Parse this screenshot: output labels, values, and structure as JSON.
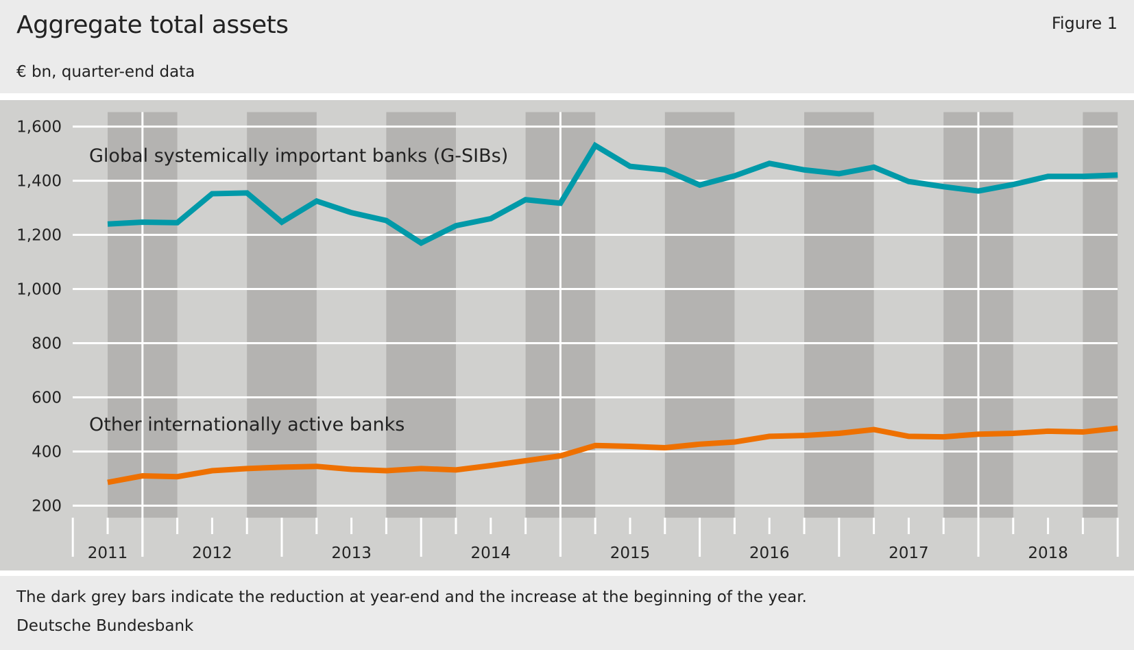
{
  "header": {
    "title": "Aggregate total assets",
    "figure": "Figure 1",
    "subtitle": "€ bn, quarter-end data"
  },
  "footer": {
    "note": "The dark grey bars indicate the reduction at year-end and the increase at the beginning of the year.",
    "source": "Deutsche Bundesbank"
  },
  "chart_data": {
    "type": "line",
    "title": "Aggregate total assets",
    "ylabel": "€ bn",
    "ylim": [
      200,
      1600
    ],
    "yticks": [
      "200",
      "400",
      "600",
      "800",
      "1,000",
      "1,200",
      "1,400",
      "1,600"
    ],
    "ytick_values": [
      200,
      400,
      600,
      800,
      1000,
      1200,
      1400,
      1600
    ],
    "year_labels": [
      "2011",
      "2012",
      "2013",
      "2014",
      "2015",
      "2016",
      "2017",
      "2018"
    ],
    "x": [
      "2011 Q3",
      "2011 Q4",
      "2012 Q1",
      "2012 Q2",
      "2012 Q3",
      "2012 Q4",
      "2013 Q1",
      "2013 Q2",
      "2013 Q3",
      "2013 Q4",
      "2014 Q1",
      "2014 Q2",
      "2014 Q3",
      "2014 Q4",
      "2015 Q1",
      "2015 Q2",
      "2015 Q3",
      "2015 Q4",
      "2016 Q1",
      "2016 Q2",
      "2016 Q3",
      "2016 Q4",
      "2017 Q1",
      "2017 Q2",
      "2017 Q3",
      "2017 Q4",
      "2018 Q1",
      "2018 Q2",
      "2018 Q3",
      "2018 Q4"
    ],
    "grid": true,
    "shading": "dark grey bars around each year-end (Q3 to Q1)",
    "series": [
      {
        "name": "Global systemically important banks (G-SIBs)",
        "color": "#0099a8",
        "values": [
          1240,
          1247,
          1245,
          1352,
          1355,
          1247,
          1325,
          1282,
          1253,
          1170,
          1234,
          1260,
          1330,
          1317,
          1530,
          1453,
          1440,
          1384,
          1418,
          1464,
          1440,
          1426,
          1450,
          1397,
          1378,
          1362,
          1386,
          1416,
          1416,
          1421
        ]
      },
      {
        "name": "Other internationally active banks",
        "color": "#ee7000",
        "values": [
          286,
          310,
          307,
          329,
          337,
          342,
          345,
          334,
          329,
          337,
          332,
          348,
          366,
          384,
          422,
          419,
          414,
          427,
          435,
          456,
          459,
          467,
          481,
          456,
          454,
          464,
          467,
          475,
          472,
          486
        ]
      }
    ]
  }
}
